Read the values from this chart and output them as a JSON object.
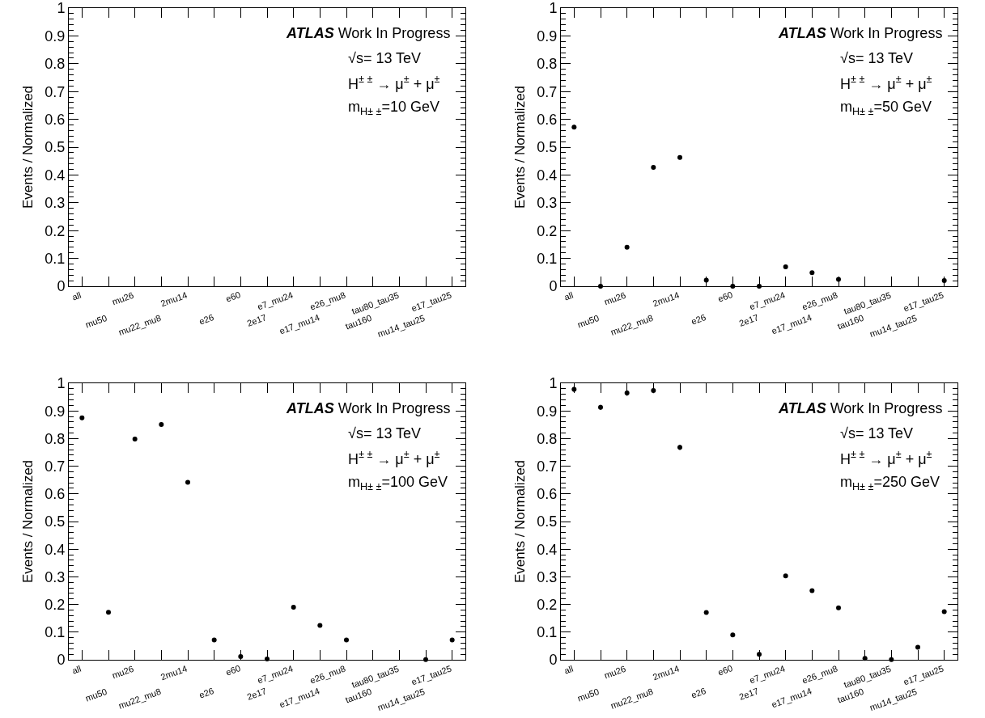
{
  "chart_data": [
    {
      "type": "scatter",
      "ylabel": "Events / Normalized",
      "categories": [
        "all",
        "mu50",
        "mu26",
        "mu22_mu8",
        "2mu14",
        "e26",
        "e60",
        "2e17",
        "e7_mu24",
        "e17_mu14",
        "e26_mu8",
        "tau160",
        "tau80_tau35",
        "mu14_tau25",
        "e17_tau25"
      ],
      "marker": "circle",
      "ylim": [
        0,
        1
      ],
      "yticks": [
        0,
        0.1,
        0.2,
        0.3,
        0.4,
        0.5,
        0.6,
        0.7,
        0.8,
        0.9,
        1
      ],
      "series": [
        {
          "color": "#000000",
          "values": [
            null,
            null,
            null,
            null,
            null,
            null,
            null,
            null,
            null,
            null,
            null,
            null,
            null,
            null,
            null
          ]
        }
      ],
      "annotations": [
        "ATLAS",
        "Work In Progress",
        "√s= 13 TeV",
        "H$^{± ±}$ → μ$^{±}$ + μ$^{±}$",
        "m$_{H± ±}$=10 GeV"
      ]
    },
    {
      "type": "scatter",
      "ylabel": "Events / Normalized",
      "categories": [
        "all",
        "mu50",
        "mu26",
        "mu22_mu8",
        "2mu14",
        "e26",
        "e60",
        "2e17",
        "e7_mu24",
        "e17_mu14",
        "e26_mu8",
        "tau160",
        "tau80_tau35",
        "mu14_tau25",
        "e17_tau25"
      ],
      "marker": "circle",
      "ylim": [
        0,
        1
      ],
      "yticks": [
        0,
        0.1,
        0.2,
        0.3,
        0.4,
        0.5,
        0.6,
        0.7,
        0.8,
        0.9,
        1
      ],
      "series": [
        {
          "color": "#000000",
          "values": [
            0.572,
            0,
            0.14,
            0.427,
            0.463,
            0.022,
            0,
            0,
            0.07,
            0.049,
            0.025,
            null,
            null,
            null,
            0.02
          ],
          "errors": [
            0.008,
            null,
            0.003,
            0.007,
            0.007,
            0.004,
            null,
            null,
            0.003,
            0.003,
            0.004,
            null,
            null,
            null,
            0.004
          ]
        }
      ],
      "annotations": [
        "ATLAS",
        "Work In Progress",
        "√s= 13 TeV",
        "H$^{± ±}$ → μ$^{±}$ + μ$^{±}$",
        "m$_{H± ±}$=50 GeV"
      ]
    },
    {
      "type": "scatter",
      "ylabel": "Events / Normalized",
      "categories": [
        "all",
        "mu50",
        "mu26",
        "mu22_mu8",
        "2mu14",
        "e26",
        "e60",
        "2e17",
        "e7_mu24",
        "e17_mu14",
        "e26_mu8",
        "tau160",
        "tau80_tau35",
        "mu14_tau25",
        "e17_tau25"
      ],
      "marker": "circle",
      "ylim": [
        0,
        1
      ],
      "yticks": [
        0,
        0.1,
        0.2,
        0.3,
        0.4,
        0.5,
        0.6,
        0.7,
        0.8,
        0.9,
        1
      ],
      "series": [
        {
          "color": "#000000",
          "values": [
            0.875,
            0.172,
            0.798,
            0.851,
            0.642,
            0.072,
            0.012,
            0.003,
            0.19,
            0.124,
            0.072,
            null,
            null,
            0.001,
            0.072
          ],
          "errors": [
            0.008,
            0.004,
            0.008,
            0.008,
            0.007,
            0.003,
            0.004,
            0.003,
            0.004,
            0.003,
            0.003,
            null,
            null,
            null,
            0.003
          ]
        }
      ],
      "annotations": [
        "ATLAS",
        "Work In Progress",
        "√s= 13 TeV",
        "H$^{± ±}$ → μ$^{±}$ + μ$^{±}$",
        "m$_{H± ±}$=100 GeV"
      ]
    },
    {
      "type": "scatter",
      "ylabel": "Events / Normalized",
      "categories": [
        "all",
        "mu50",
        "mu26",
        "mu22_mu8",
        "2mu14",
        "e26",
        "e60",
        "2e17",
        "e7_mu24",
        "e17_mu14",
        "e26_mu8",
        "tau160",
        "tau80_tau35",
        "mu14_tau25",
        "e17_tau25"
      ],
      "marker": "circle",
      "ylim": [
        0,
        1
      ],
      "yticks": [
        0,
        0.1,
        0.2,
        0.3,
        0.4,
        0.5,
        0.6,
        0.7,
        0.8,
        0.9,
        1
      ],
      "series": [
        {
          "color": "#000000",
          "values": [
            0.978,
            0.913,
            0.965,
            0.974,
            0.768,
            0.171,
            0.09,
            0.02,
            0.303,
            0.25,
            0.188,
            0.005,
            0.001,
            0.045,
            0.174
          ],
          "errors": [
            0.01,
            0.009,
            0.01,
            0.01,
            0.009,
            0.004,
            0.003,
            0.007,
            0.005,
            0.004,
            0.004,
            0.003,
            null,
            0.003,
            0.003
          ]
        }
      ],
      "annotations": [
        "ATLAS",
        "Work In Progress",
        "√s= 13 TeV",
        "H$^{± ±}$ → μ$^{±}$ + μ$^{±}$",
        "m$_{H± ±}$=250 GeV"
      ]
    }
  ]
}
